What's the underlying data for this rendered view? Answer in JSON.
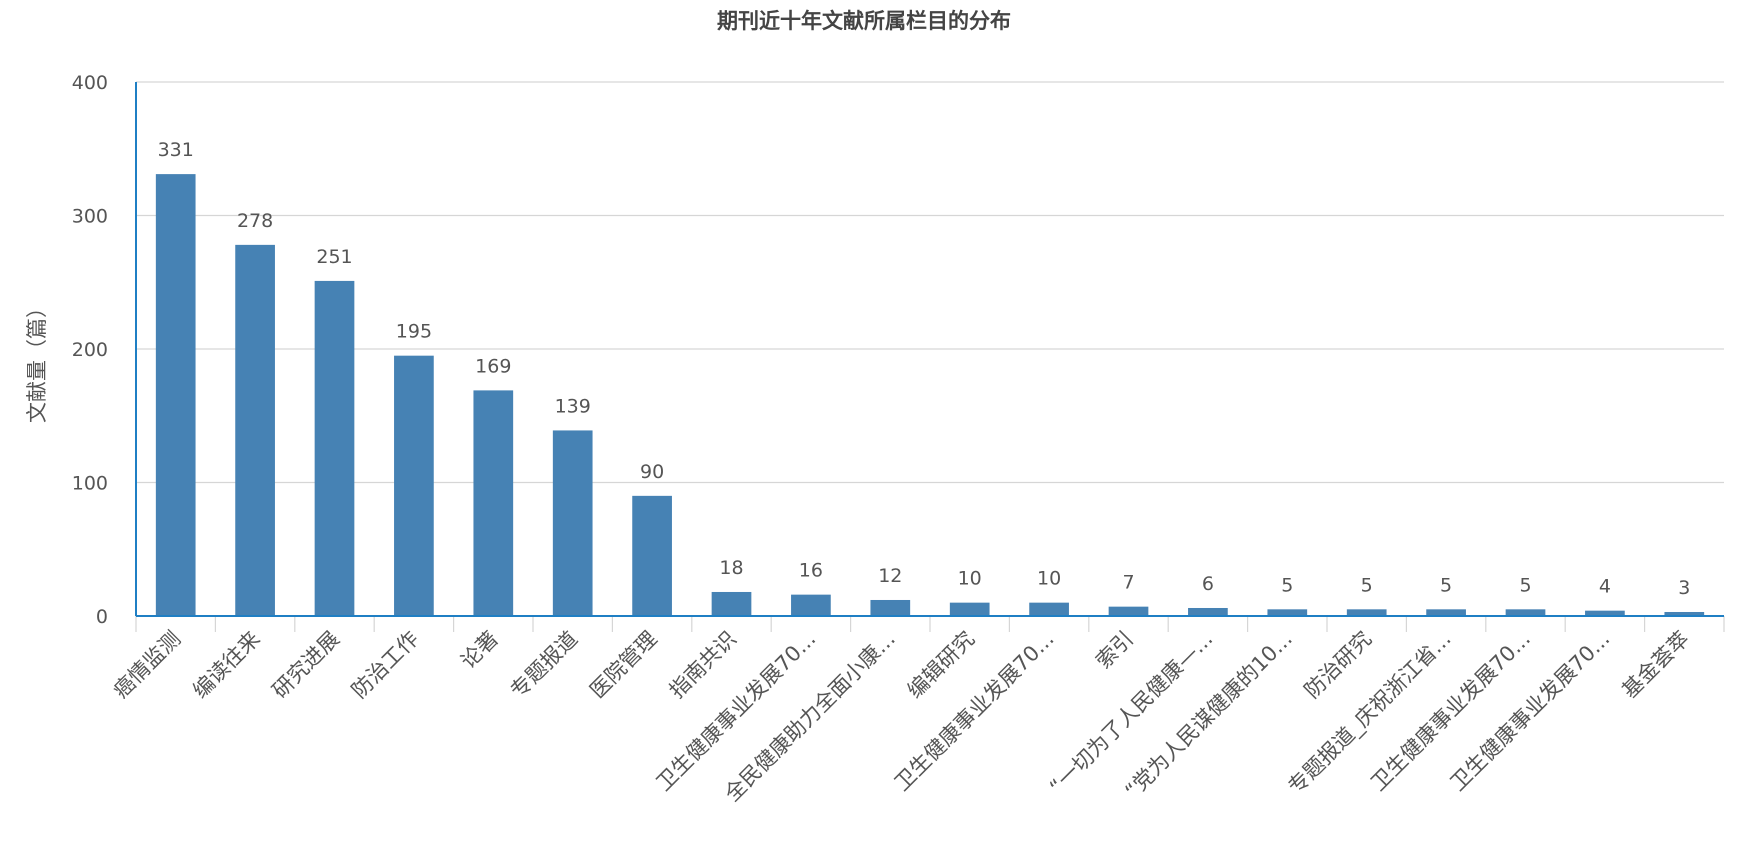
{
  "chart_data": {
    "type": "bar",
    "title": "期刊近十年文献所属栏目的分布",
    "xlabel": "",
    "ylabel": "文献量（篇）",
    "ylim": [
      0,
      400
    ],
    "yticks": [
      "0",
      "100",
      "200",
      "300",
      "400"
    ],
    "grid": true,
    "categories": [
      "癌情监测",
      "编读往来",
      "研究进展",
      "防治工作",
      "论著",
      "专题报道",
      "医院管理",
      "指南共识",
      "卫生健康事业发展70...",
      "全民健康助力全面小康...",
      "编辑研究",
      "卫生健康事业发展70...",
      "索引",
      "“一切为了人民健康—...",
      "“党为人民谋健康的10...",
      "防治研究",
      "专题报道_庆祝浙江省...",
      "卫生健康事业发展70...",
      "卫生健康事业发展70...",
      "基金荟萃"
    ],
    "values": [
      331,
      278,
      251,
      195,
      169,
      139,
      90,
      18,
      16,
      12,
      10,
      10,
      7,
      6,
      5,
      5,
      5,
      5,
      4,
      3
    ],
    "value_labels": [
      "331",
      "278",
      "251",
      "195",
      "169",
      "139",
      "90",
      "18",
      "16",
      "12",
      "10",
      "10",
      "7",
      "6",
      "5",
      "5",
      "5",
      "5",
      "4",
      "3"
    ],
    "colors": {
      "bar": "#4682b4",
      "axis": "#1f7fc4",
      "grid": "#d6d6d6",
      "text": "#555555",
      "title": "#444444"
    }
  }
}
